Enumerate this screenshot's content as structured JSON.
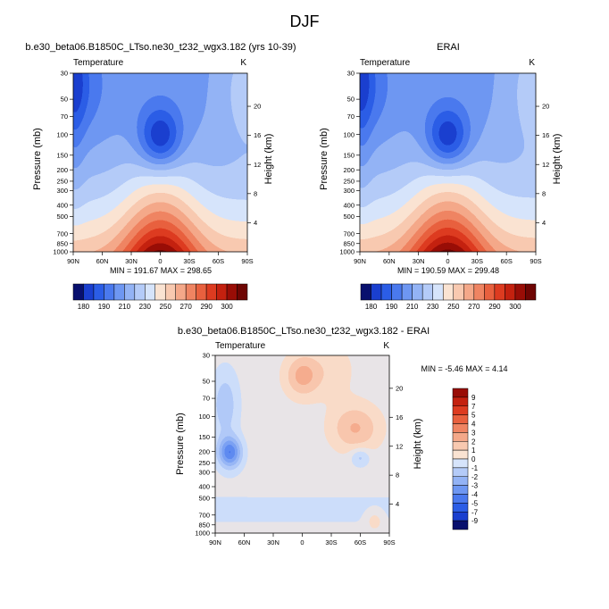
{
  "figure": {
    "title": "DJF"
  },
  "chart_data": [
    {
      "id": "model",
      "type": "contour",
      "title": "b.e30_beta06.B1850C_LTso.ne30_t232_wgx3.182 (yrs 10-39)",
      "left_label": "Temperature",
      "right_label": "K",
      "ylabel": "Pressure (mb)",
      "y2label": "Height (km)",
      "x_ticks": [
        "90N",
        "60N",
        "30N",
        "0",
        "30S",
        "60S",
        "90S"
      ],
      "x_values": [
        90,
        60,
        30,
        0,
        -30,
        -60,
        -90
      ],
      "y_ticks": [
        "30",
        "50",
        "70",
        "100",
        "150",
        "200",
        "250",
        "300",
        "400",
        "500",
        "700",
        "850",
        "1000"
      ],
      "y_values": [
        30,
        50,
        70,
        100,
        150,
        200,
        250,
        300,
        400,
        500,
        700,
        850,
        1000
      ],
      "y2_ticks": [
        "4",
        "8",
        "12",
        "16",
        "20"
      ],
      "y2_values": [
        4,
        8,
        12,
        16,
        20
      ],
      "stats": "MIN = 191.67  MAX = 298.65",
      "min": 191.67,
      "max": 298.65
    },
    {
      "id": "obs",
      "type": "contour",
      "title": "ERAI",
      "left_label": "Temperature",
      "right_label": "K",
      "ylabel": "Pressure (mb)",
      "y2label": "Height (km)",
      "x_ticks": [
        "90N",
        "60N",
        "30N",
        "0",
        "30S",
        "60S",
        "90S"
      ],
      "x_values": [
        90,
        60,
        30,
        0,
        -30,
        -60,
        -90
      ],
      "y_ticks": [
        "30",
        "50",
        "70",
        "100",
        "150",
        "200",
        "250",
        "300",
        "400",
        "500",
        "700",
        "850",
        "1000"
      ],
      "y_values": [
        30,
        50,
        70,
        100,
        150,
        200,
        250,
        300,
        400,
        500,
        700,
        850,
        1000
      ],
      "y2_ticks": [
        "4",
        "8",
        "12",
        "16",
        "20"
      ],
      "y2_values": [
        4,
        8,
        12,
        16,
        20
      ],
      "stats": "MIN = 190.59  MAX = 299.48",
      "min": 190.59,
      "max": 299.48
    },
    {
      "id": "diff",
      "type": "contour",
      "title": "b.e30_beta06.B1850C_LTso.ne30_t232_wgx3.182 - ERAI",
      "left_label": "Temperature",
      "right_label": "K",
      "ylabel": "Pressure (mb)",
      "y2label": "Height (km)",
      "x_ticks": [
        "90N",
        "60N",
        "30N",
        "0",
        "30S",
        "60S",
        "90S"
      ],
      "x_values": [
        90,
        60,
        30,
        0,
        -30,
        -60,
        -90
      ],
      "y_ticks": [
        "30",
        "50",
        "70",
        "100",
        "150",
        "200",
        "250",
        "300",
        "400",
        "500",
        "700",
        "850",
        "1000"
      ],
      "y_values": [
        30,
        50,
        70,
        100,
        150,
        200,
        250,
        300,
        400,
        500,
        700,
        850,
        1000
      ],
      "y2_ticks": [
        "4",
        "8",
        "12",
        "16",
        "20"
      ],
      "y2_values": [
        4,
        8,
        12,
        16,
        20
      ],
      "stats": "MIN = -5.46  MAX =  4.14",
      "min": -5.46,
      "max": 4.14
    }
  ],
  "colorbars": {
    "absolute": {
      "labels": [
        "180",
        "190",
        "210",
        "230",
        "250",
        "270",
        "290",
        "300"
      ],
      "colors": [
        "#08106e",
        "#1a3fcf",
        "#2b5de6",
        "#4a79ee",
        "#6e97f2",
        "#93b3f5",
        "#b4cbf8",
        "#d6e4fb",
        "#fae3d2",
        "#f8c9b0",
        "#f4a889",
        "#ef8462",
        "#e8603e",
        "#dd3b20",
        "#c4210f",
        "#990d06",
        "#6e0503"
      ]
    },
    "difference": {
      "labels": [
        "9",
        "7",
        "5",
        "4",
        "3",
        "2",
        "1",
        "0",
        "-1",
        "-2",
        "-3",
        "-4",
        "-5",
        "-7",
        "-9"
      ],
      "colors": [
        "#990d06",
        "#c4210f",
        "#dd3b20",
        "#e8603e",
        "#ef8462",
        "#f4a889",
        "#f8c9b0",
        "#fae3d2",
        "#d6e4fb",
        "#b4cbf8",
        "#93b3f5",
        "#6e97f2",
        "#4a79ee",
        "#2b5de6",
        "#1a3fcf",
        "#08106e"
      ]
    }
  }
}
